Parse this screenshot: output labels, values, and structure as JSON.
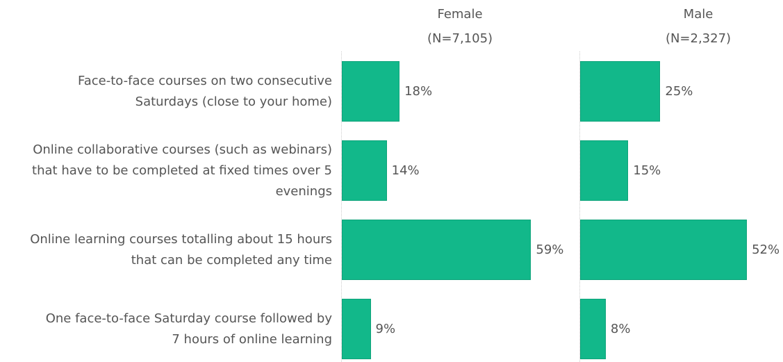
{
  "chart_data": {
    "type": "bar",
    "orientation": "horizontal",
    "categories": [
      "Face-to-face courses on two consecutive\nSaturdays (close to your home)",
      "Online collaborative courses (such as webinars)\nthat have to be completed at fixed times over 5\nevenings",
      "Online learning courses totalling about 15 hours\nthat can be completed any time",
      "One face-to-face Saturday course followed by\n7 hours of online learning"
    ],
    "series": [
      {
        "name": "Female",
        "note": "(N=7,105)",
        "color": "#12b88a",
        "values": [
          18,
          14,
          59,
          9
        ],
        "value_labels": [
          "18%",
          "14%",
          "59%",
          "9%"
        ]
      },
      {
        "name": "Male",
        "note": "(N=2,327)",
        "color": "#12b88a",
        "values": [
          25,
          15,
          52,
          8
        ],
        "value_labels": [
          "25%",
          "15%",
          "52%",
          "8%"
        ]
      }
    ],
    "xlim": [
      0,
      60
    ]
  }
}
